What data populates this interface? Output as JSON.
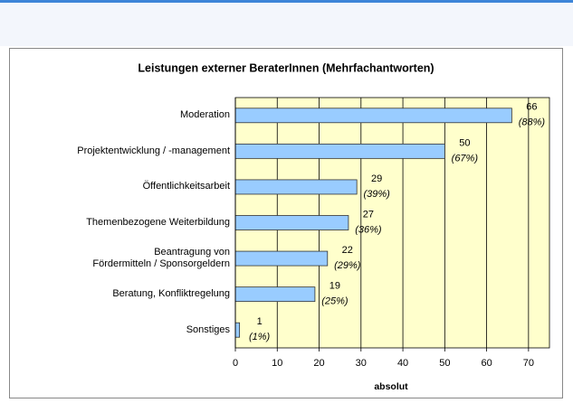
{
  "chart_data": {
    "type": "barh",
    "title": "Leistungen externer BeraterInnen (Mehrfachantworten)",
    "categories": [
      "Moderation",
      "Projektentwicklung / -management",
      "Öffentlichkeitsarbeit",
      "Themenbezogene Weiterbildung",
      "Beantragung von\nFördermitteln / Sponsorgeldern",
      "Beratung, Konfliktregelung",
      "Sonstiges"
    ],
    "values": [
      66,
      50,
      29,
      27,
      22,
      19,
      1
    ],
    "percent_labels": [
      "(88%)",
      "(67%)",
      "(39%)",
      "(36%)",
      "(29%)",
      "(25%)",
      "(1%)"
    ],
    "color": "#99ccff",
    "xlabel": "absolut",
    "xlim": [
      0,
      75
    ],
    "xticks": [
      0,
      10,
      20,
      30,
      40,
      50,
      60,
      70
    ],
    "grid": true
  }
}
